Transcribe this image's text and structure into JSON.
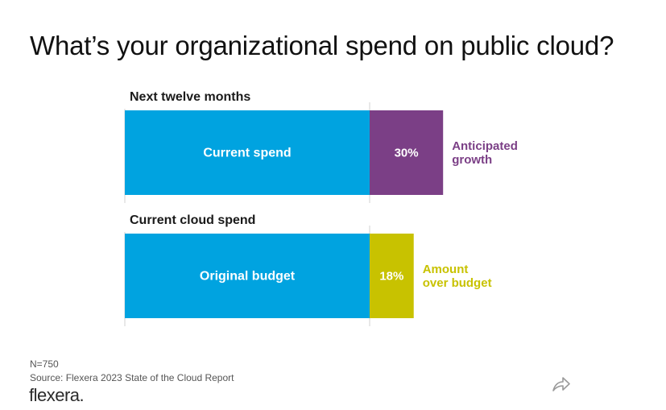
{
  "chart_data": {
    "type": "bar",
    "title": "What’s your organizational spend on public cloud?",
    "groups": [
      {
        "label": "Next twelve months",
        "base_label": "Current spend",
        "base_value": 100,
        "extra_value": 30,
        "extra_label": "30%",
        "annotation_lines": [
          "Anticipated",
          "growth"
        ],
        "base_color": "#00a3e0",
        "extra_color": "#7b3f86",
        "annotation_color": "#7b3f86"
      },
      {
        "label": "Current cloud spend",
        "base_label": "Original budget",
        "base_value": 100,
        "extra_value": 18,
        "extra_label": "18%",
        "annotation_lines": [
          "Amount",
          "over budget"
        ],
        "base_color": "#00a3e0",
        "extra_color": "#c8c200",
        "annotation_color": "#c8c200"
      }
    ],
    "xlim": [
      0,
      130
    ]
  },
  "footer": {
    "sample": "N=750",
    "source": "Source: Flexera 2023 State of the Cloud Report",
    "logo": "flexera."
  },
  "share_icon": "share-icon"
}
